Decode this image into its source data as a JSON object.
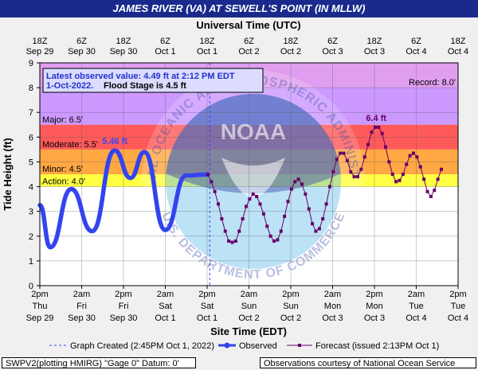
{
  "title": "JAMES RIVER (VA) AT SEWELL'S POINT (IN MLLW)",
  "footer": {
    "left": "SWPV2(plotting HMIRG) \"Gage 0\" Datum: 0'",
    "right": "Observations courtesy of National Ocean Service"
  },
  "chart_data": {
    "type": "line",
    "title": "JAMES RIVER (VA) AT SEWELL'S POINT (IN MLLW)",
    "xlabel": "Site Time (EDT)",
    "x2label": "Universal Time (UTC)",
    "ylabel": "Tide Height (ft)",
    "ylim": [
      0,
      9
    ],
    "yticks": [
      0,
      1,
      2,
      3,
      4,
      5,
      6,
      7,
      8,
      9
    ],
    "grid": true,
    "x_range_hours": [
      0,
      120
    ],
    "local_ticks": [
      {
        "h": 0,
        "l1": "2pm",
        "l2": "Thu",
        "l3": "Sep 29"
      },
      {
        "h": 12,
        "l1": "2am",
        "l2": "Fri",
        "l3": "Sep 30"
      },
      {
        "h": 24,
        "l1": "2pm",
        "l2": "Fri",
        "l3": "Sep 30"
      },
      {
        "h": 36,
        "l1": "2am",
        "l2": "Sat",
        "l3": "Oct 1"
      },
      {
        "h": 48,
        "l1": "2pm",
        "l2": "Sat",
        "l3": "Oct 1"
      },
      {
        "h": 60,
        "l1": "2am",
        "l2": "Sun",
        "l3": "Oct 2"
      },
      {
        "h": 72,
        "l1": "2pm",
        "l2": "Sun",
        "l3": "Oct 2"
      },
      {
        "h": 84,
        "l1": "2am",
        "l2": "Mon",
        "l3": "Oct 3"
      },
      {
        "h": 96,
        "l1": "2pm",
        "l2": "Mon",
        "l3": "Oct 3"
      },
      {
        "h": 108,
        "l1": "2am",
        "l2": "Tue",
        "l3": "Oct 4"
      },
      {
        "h": 120,
        "l1": "2pm",
        "l2": "Tue",
        "l3": "Oct 4"
      }
    ],
    "utc_ticks": [
      {
        "h": 0,
        "l1": "18Z",
        "l2": "Sep 29"
      },
      {
        "h": 12,
        "l1": "6Z",
        "l2": "Sep 30"
      },
      {
        "h": 24,
        "l1": "18Z",
        "l2": "Sep 30"
      },
      {
        "h": 36,
        "l1": "6Z",
        "l2": "Oct 1"
      },
      {
        "h": 48,
        "l1": "18Z",
        "l2": "Oct 1"
      },
      {
        "h": 60,
        "l1": "6Z",
        "l2": "Oct 2"
      },
      {
        "h": 72,
        "l1": "18Z",
        "l2": "Oct 2"
      },
      {
        "h": 84,
        "l1": "6Z",
        "l2": "Oct 3"
      },
      {
        "h": 96,
        "l1": "18Z",
        "l2": "Oct 3"
      },
      {
        "h": 108,
        "l1": "6Z",
        "l2": "Oct 4"
      },
      {
        "h": 120,
        "l1": "18Z",
        "l2": "Oct 4"
      }
    ],
    "flood_bands": [
      {
        "name": "Record",
        "label": "Record: 8.0'",
        "from": 8.0,
        "to": 9.0,
        "color": "#e09ef0"
      },
      {
        "name": "Major",
        "label": "Major: 6.5'",
        "from": 6.5,
        "to": 8.0,
        "color": "#cc99ff"
      },
      {
        "name": "Moderate",
        "label": "Moderate: 5.5'",
        "from": 5.5,
        "to": 6.5,
        "color": "#ff5a5a"
      },
      {
        "name": "Minor",
        "label": "Minor: 4.5'",
        "from": 4.5,
        "to": 5.5,
        "color": "#ffa844"
      },
      {
        "name": "Action",
        "label": "Action: 4.0'",
        "from": 4.0,
        "to": 4.5,
        "color": "#ffff44"
      }
    ],
    "observed": {
      "name": "Observed",
      "color": "#3344ee",
      "points": [
        [
          0,
          3.25
        ],
        [
          3,
          1.55
        ],
        [
          9,
          3.9
        ],
        [
          15,
          2.2
        ],
        [
          21.5,
          5.46
        ],
        [
          26,
          4.35
        ],
        [
          30,
          5.4
        ],
        [
          36,
          2.25
        ],
        [
          42,
          4.45
        ],
        [
          48.2,
          4.49
        ]
      ]
    },
    "forecast": {
      "name": "Forecast (issued 2:13PM Oct 1)",
      "color": "#660066",
      "start_h": 48.2,
      "step_h": 1,
      "values": [
        4.49,
        4.2,
        3.8,
        3.3,
        2.7,
        2.2,
        1.8,
        1.75,
        1.8,
        2.2,
        2.7,
        3.2,
        3.5,
        3.7,
        3.6,
        3.3,
        2.9,
        2.4,
        2.0,
        1.8,
        1.85,
        2.2,
        2.8,
        3.4,
        3.9,
        4.2,
        4.3,
        4.1,
        3.7,
        3.1,
        2.5,
        2.2,
        2.3,
        2.7,
        3.3,
        4.0,
        4.6,
        5.1,
        5.35,
        5.35,
        5.05,
        4.6,
        4.4,
        4.4,
        4.7,
        5.2,
        5.7,
        6.2,
        6.4,
        6.4,
        6.15,
        5.6,
        5.0,
        4.5,
        4.2,
        4.25,
        4.5,
        4.9,
        5.25,
        5.35,
        5.2,
        4.8,
        4.3,
        3.8,
        3.6,
        3.85,
        4.3,
        4.7
      ]
    },
    "annotations": [
      {
        "text": "5.46 ft",
        "h": 21.5,
        "value": 5.46,
        "color": "#3344ee"
      },
      {
        "text": "6.4 ft",
        "h": 96.5,
        "value": 6.4,
        "color": "#660066"
      }
    ],
    "latest": {
      "line1": "Latest observed value:  4.49 ft at 2:12 PM EDT",
      "line2a": "1-Oct-2022.",
      "line2b": "Flood Stage is 4.5 ft"
    },
    "graph_created_h": 48.75,
    "legend": {
      "created": "Graph Created (2:45PM Oct 1, 2022)",
      "observed": "Observed",
      "forecast": "Forecast (issued 2:13PM Oct 1)"
    },
    "watermark": {
      "outer": "NATIONAL OCEANIC AND ATMOSPHERIC ADMINISTRATION",
      "inner": "U.S. DEPARTMENT OF COMMERCE",
      "badge": "NOAA"
    }
  }
}
